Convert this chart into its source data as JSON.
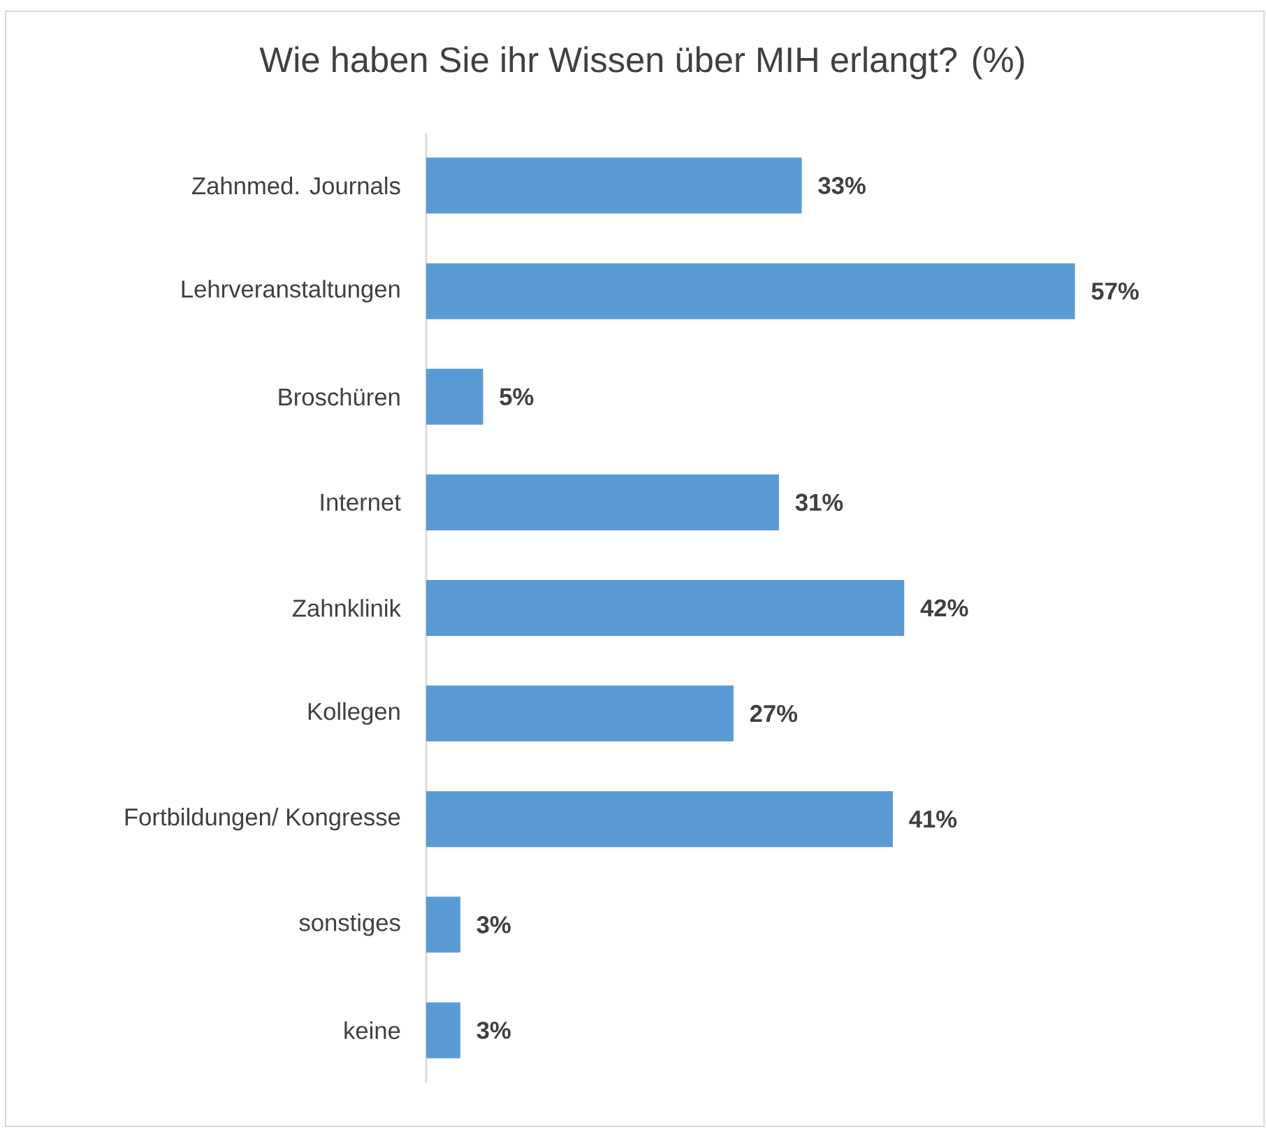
{
  "chart_data": {
    "type": "bar",
    "orientation": "horizontal",
    "title": "Wie haben Sie ihr Wissen über MIH erlangt? (%)",
    "categories": [
      "Zahnmed. Journals",
      "Lehrveranstaltungen",
      "Broschüren",
      "Internet",
      "Zahnklinik",
      "Kollegen",
      "Fortbildungen/ Kongresse",
      "sonstiges",
      "keine"
    ],
    "values": [
      33,
      57,
      5,
      31,
      42,
      27,
      41,
      3,
      3
    ],
    "value_labels": [
      "33%",
      "57%",
      "5%",
      "31%",
      "42%",
      "27%",
      "41%",
      "3%",
      "3%"
    ],
    "color": "#5b9bd5"
  }
}
